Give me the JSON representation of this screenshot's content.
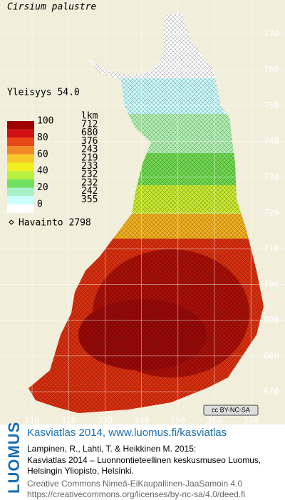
{
  "title": "Cirsium palustre",
  "frequency": "Yleisyys  54.0",
  "legend": {
    "scale_labels": [
      "100",
      "80",
      "60",
      "40",
      "20",
      "0"
    ],
    "count_header": "lkm",
    "counts": [
      "712",
      "680",
      "376",
      "243",
      "219",
      "233",
      "232",
      "232",
      "242",
      "355"
    ],
    "colors": [
      "#a00000",
      "#d01010",
      "#e84818",
      "#f08828",
      "#f8c828",
      "#f0f020",
      "#b8f040",
      "#70e060",
      "#a8f0c8",
      "#ccffff",
      "#ffffff"
    ],
    "observations": "Havainto 2798"
  },
  "grid": {
    "northing": [
      "770",
      "760",
      "750",
      "740",
      "730",
      "720",
      "710",
      "700",
      "690",
      "680",
      "670"
    ],
    "easting": [
      "310",
      "320",
      "330",
      "340",
      "350",
      "360",
      "370"
    ]
  },
  "badge": "cc BY-NC-SA",
  "footer": {
    "logo": "LUOMUS",
    "link": "Kasviatlas 2014, www.luomus.fi/kasviatlas",
    "citation": [
      "Lampinen, R., Lahti, T. & Heikkinen M. 2015:",
      "Kasviatlas 2014 – Luonnontieteellinen keskusmuseo Luomus,",
      "Helsingin Yliopisto, Helsinki."
    ],
    "license": [
      "Creative Commons Nimeä-EiKaupallinen-JaaSamoin 4.0",
      "https://creativecommons.org/licenses/by-nc-sa/4.0/deed.fi"
    ]
  }
}
